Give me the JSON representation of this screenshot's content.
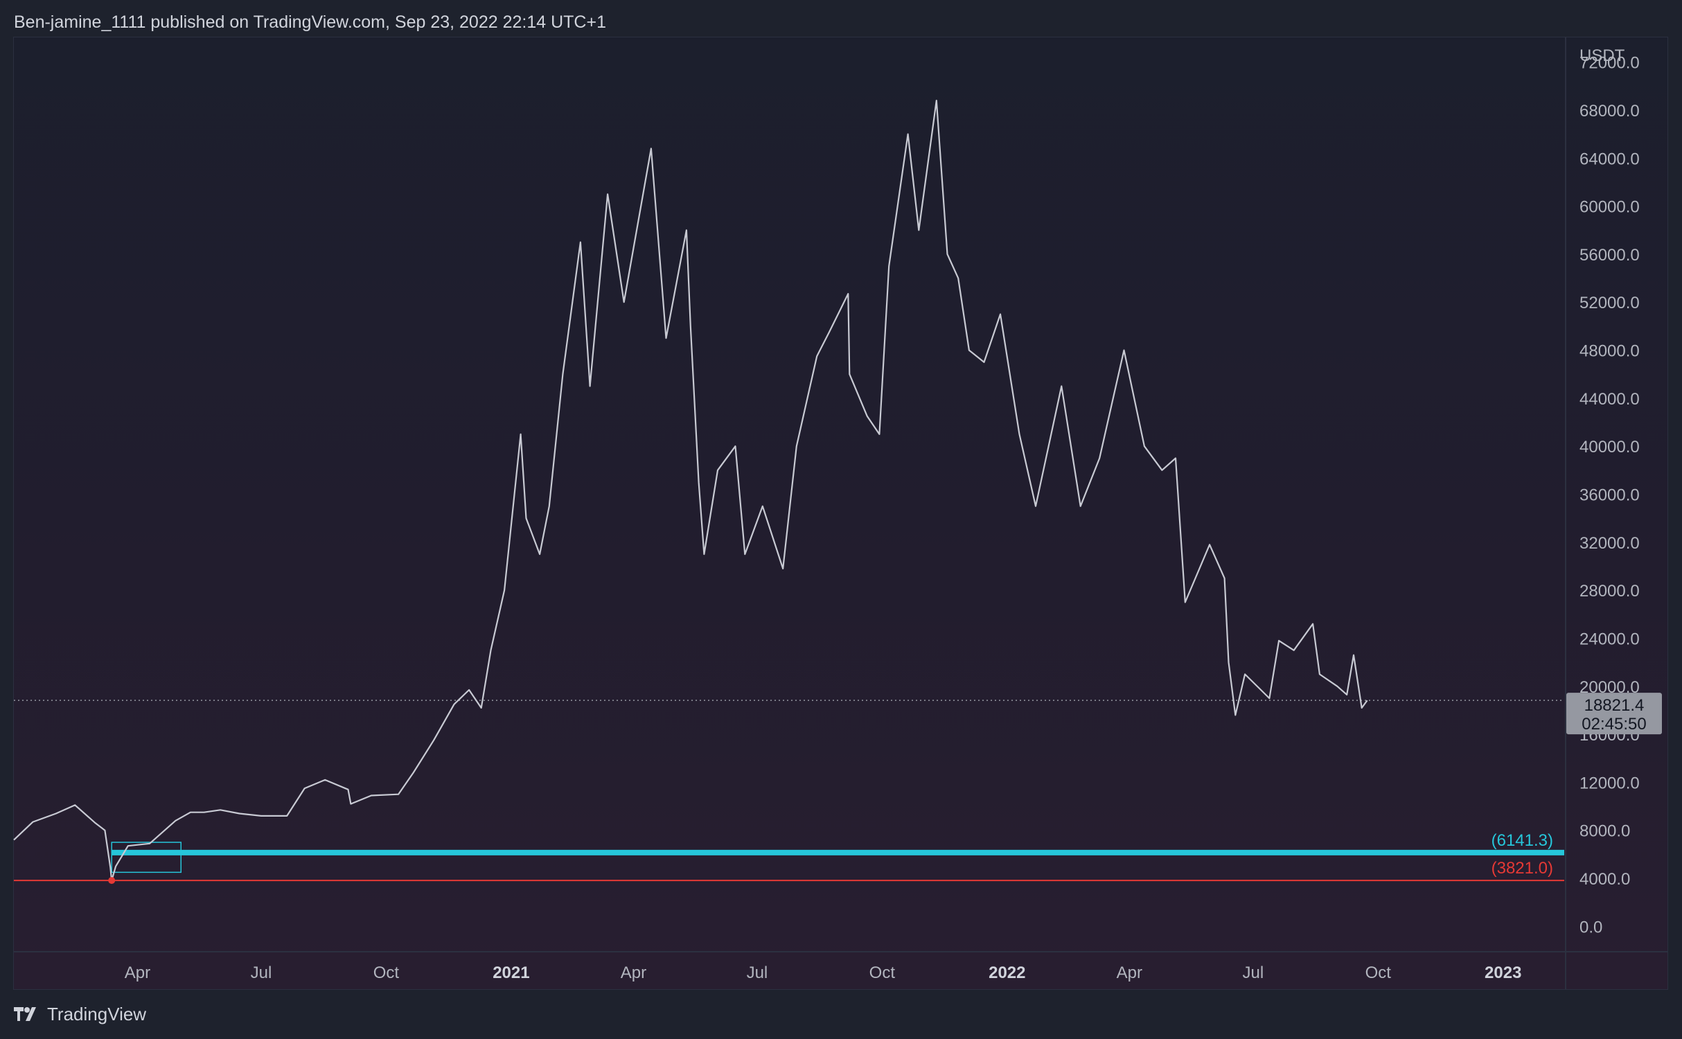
{
  "header": {
    "publish_line": "Ben-jamine_1111 published on TradingView.com, Sep 23, 2022 22:14 UTC+1"
  },
  "footer": {
    "brand": "TradingView",
    "logo_icon": "tradingview-logo-icon"
  },
  "colors": {
    "background": "#1e222d",
    "price_line": "#c8cad3",
    "support_line": "#26c6da",
    "low_line": "#e53935",
    "axis_text": "#b2b5be",
    "current_price_bg": "#9598a1"
  },
  "chart_data": {
    "type": "line",
    "symbol_quote": "USDT",
    "ylim": [
      -2000,
      74000
    ],
    "y_ticks": [
      "72000.0",
      "68000.0",
      "64000.0",
      "60000.0",
      "56000.0",
      "52000.0",
      "48000.0",
      "44000.0",
      "40000.0",
      "36000.0",
      "32000.0",
      "28000.0",
      "24000.0",
      "20000.0",
      "16000.0",
      "12000.0",
      "8000.0",
      "4000.0",
      "0.0"
    ],
    "x_ticks": [
      {
        "label": "Apr",
        "date": "2020-04-01",
        "bold": false
      },
      {
        "label": "Jul",
        "date": "2020-07-01",
        "bold": false
      },
      {
        "label": "Oct",
        "date": "2020-10-01",
        "bold": false
      },
      {
        "label": "2021",
        "date": "2021-01-01",
        "bold": true
      },
      {
        "label": "Apr",
        "date": "2021-04-01",
        "bold": false
      },
      {
        "label": "Jul",
        "date": "2021-07-01",
        "bold": false
      },
      {
        "label": "Oct",
        "date": "2021-10-01",
        "bold": false
      },
      {
        "label": "2022",
        "date": "2022-01-01",
        "bold": true
      },
      {
        "label": "Apr",
        "date": "2022-04-01",
        "bold": false
      },
      {
        "label": "Jul",
        "date": "2022-07-01",
        "bold": false
      },
      {
        "label": "Oct",
        "date": "2022-10-01",
        "bold": false
      },
      {
        "label": "2023",
        "date": "2023-01-01",
        "bold": true
      }
    ],
    "xlim": [
      "2020-01-01",
      "2023-02-15"
    ],
    "series": [
      {
        "points": [
          [
            "2020-01-01",
            7200
          ],
          [
            "2020-01-15",
            8700
          ],
          [
            "2020-02-01",
            9400
          ],
          [
            "2020-02-15",
            10100
          ],
          [
            "2020-03-01",
            8600
          ],
          [
            "2020-03-08",
            8000
          ],
          [
            "2020-03-12",
            4900
          ],
          [
            "2020-03-13",
            3821
          ],
          [
            "2020-03-16",
            5000
          ],
          [
            "2020-03-25",
            6700
          ],
          [
            "2020-04-10",
            6900
          ],
          [
            "2020-04-29",
            8800
          ],
          [
            "2020-05-10",
            9500
          ],
          [
            "2020-05-20",
            9500
          ],
          [
            "2020-06-01",
            9700
          ],
          [
            "2020-06-15",
            9400
          ],
          [
            "2020-07-01",
            9200
          ],
          [
            "2020-07-20",
            9200
          ],
          [
            "2020-08-02",
            11500
          ],
          [
            "2020-08-17",
            12200
          ],
          [
            "2020-09-03",
            11400
          ],
          [
            "2020-09-05",
            10200
          ],
          [
            "2020-09-20",
            10900
          ],
          [
            "2020-10-10",
            11000
          ],
          [
            "2020-10-21",
            12800
          ],
          [
            "2020-11-05",
            15500
          ],
          [
            "2020-11-20",
            18500
          ],
          [
            "2020-12-01",
            19700
          ],
          [
            "2020-12-10",
            18200
          ],
          [
            "2020-12-17",
            23000
          ],
          [
            "2020-12-27",
            28000
          ],
          [
            "2021-01-08",
            41000
          ],
          [
            "2021-01-12",
            34000
          ],
          [
            "2021-01-22",
            31000
          ],
          [
            "2021-01-29",
            35000
          ],
          [
            "2021-02-08",
            46000
          ],
          [
            "2021-02-21",
            57000
          ],
          [
            "2021-02-28",
            45000
          ],
          [
            "2021-03-13",
            61000
          ],
          [
            "2021-03-25",
            52000
          ],
          [
            "2021-04-14",
            64800
          ],
          [
            "2021-04-25",
            49000
          ],
          [
            "2021-05-10",
            58000
          ],
          [
            "2021-05-13",
            50000
          ],
          [
            "2021-05-19",
            37000
          ],
          [
            "2021-05-23",
            31000
          ],
          [
            "2021-06-02",
            38000
          ],
          [
            "2021-06-15",
            40000
          ],
          [
            "2021-06-22",
            31000
          ],
          [
            "2021-07-05",
            35000
          ],
          [
            "2021-07-20",
            29800
          ],
          [
            "2021-07-30",
            40000
          ],
          [
            "2021-08-14",
            47500
          ],
          [
            "2021-08-23",
            49500
          ],
          [
            "2021-09-06",
            52700
          ],
          [
            "2021-09-07",
            46000
          ],
          [
            "2021-09-20",
            42500
          ],
          [
            "2021-09-29",
            41000
          ],
          [
            "2021-10-06",
            55000
          ],
          [
            "2021-10-20",
            66000
          ],
          [
            "2021-10-28",
            58000
          ],
          [
            "2021-11-10",
            68800
          ],
          [
            "2021-11-18",
            56000
          ],
          [
            "2021-11-26",
            54000
          ],
          [
            "2021-12-04",
            48000
          ],
          [
            "2021-12-15",
            47000
          ],
          [
            "2021-12-27",
            51000
          ],
          [
            "2022-01-10",
            41000
          ],
          [
            "2022-01-22",
            35000
          ],
          [
            "2022-02-10",
            45000
          ],
          [
            "2022-02-24",
            35000
          ],
          [
            "2022-03-10",
            39000
          ],
          [
            "2022-03-28",
            48000
          ],
          [
            "2022-04-12",
            40000
          ],
          [
            "2022-04-25",
            38000
          ],
          [
            "2022-05-05",
            39000
          ],
          [
            "2022-05-12",
            27000
          ],
          [
            "2022-05-30",
            31800
          ],
          [
            "2022-06-10",
            29000
          ],
          [
            "2022-06-13",
            22000
          ],
          [
            "2022-06-18",
            17600
          ],
          [
            "2022-06-25",
            21000
          ],
          [
            "2022-07-13",
            19000
          ],
          [
            "2022-07-20",
            23800
          ],
          [
            "2022-07-31",
            23000
          ],
          [
            "2022-08-14",
            25200
          ],
          [
            "2022-08-19",
            21000
          ],
          [
            "2022-09-01",
            20000
          ],
          [
            "2022-09-08",
            19300
          ],
          [
            "2022-09-13",
            22600
          ],
          [
            "2022-09-19",
            18200
          ],
          [
            "2022-09-23",
            18821.4
          ]
        ]
      }
    ],
    "last_price": {
      "value": 18821.4,
      "label": "18821.4",
      "countdown": "02:45:50"
    },
    "levels": [
      {
        "label": "(6141.3)",
        "value": 6141.3,
        "color": "#26c6da"
      },
      {
        "label": "(3821.0)",
        "value": 3821.0,
        "color": "#e53935"
      }
    ],
    "range_box": {
      "start": "2020-03-13",
      "end": "2020-05-03",
      "top": 7000,
      "bottom": 4500
    },
    "grid": false
  }
}
